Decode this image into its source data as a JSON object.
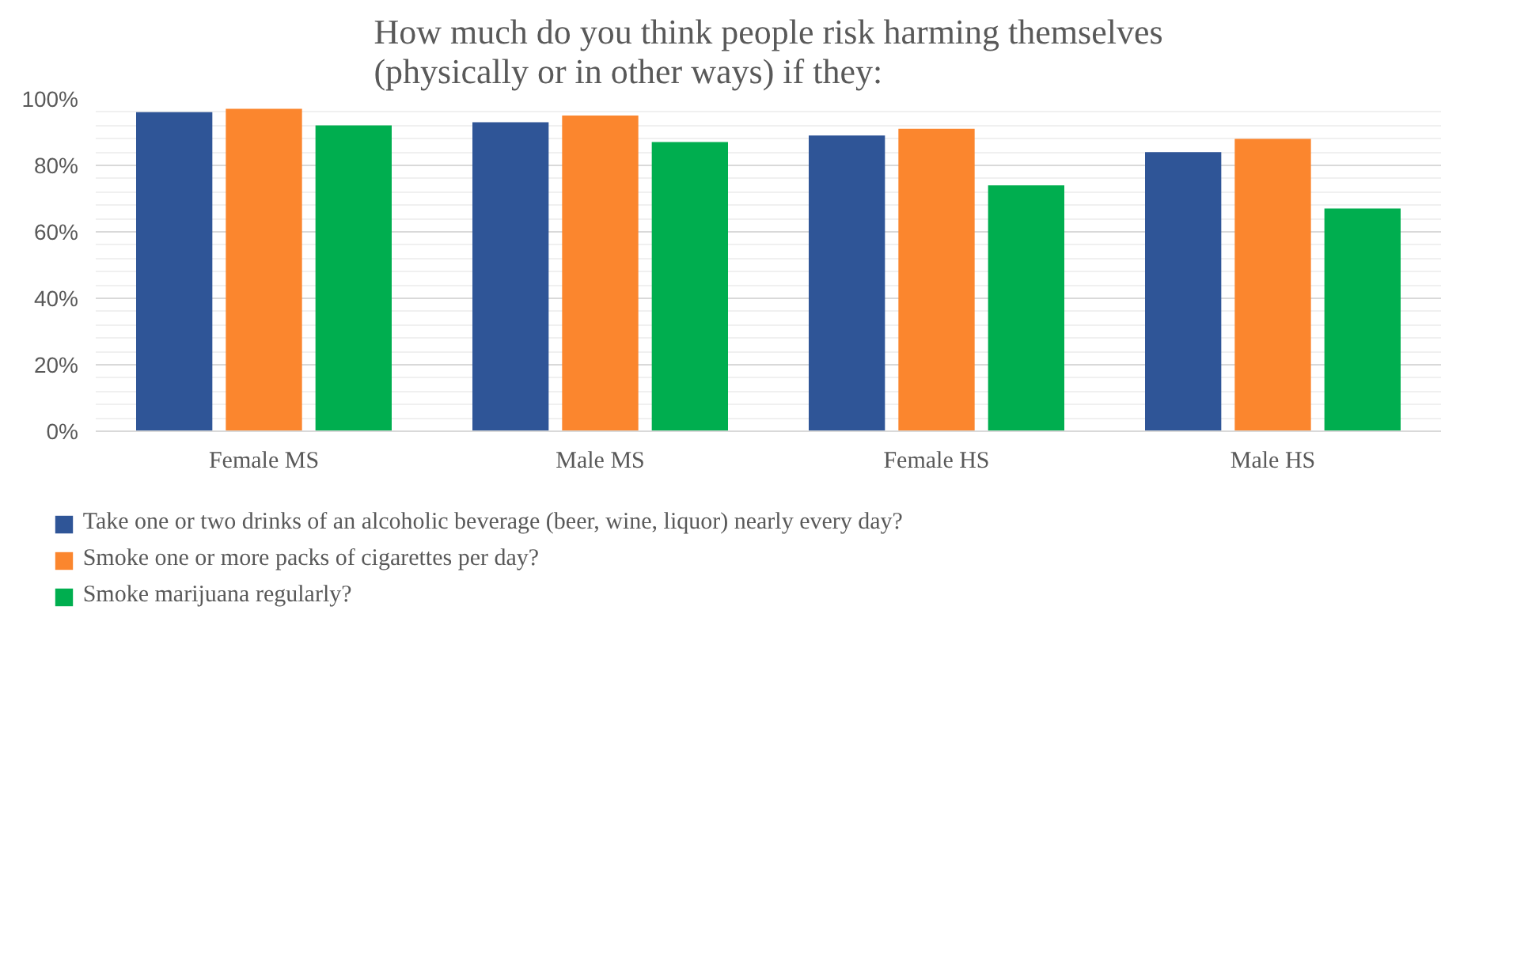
{
  "chart_data": {
    "type": "bar",
    "title": "How much do you think people risk harming themselves (physically or in other ways) if they:",
    "categories": [
      "Female MS",
      "Male MS",
      "Female HS",
      "Male HS"
    ],
    "series": [
      {
        "name": "Take one or two drinks of an alcoholic beverage (beer, wine, liquor) nearly every day?",
        "color": "#2f5597",
        "values": [
          96,
          93,
          89,
          84
        ]
      },
      {
        "name": "Smoke one or more packs of cigarettes per day?",
        "color": "#fb862e",
        "values": [
          97,
          95,
          91,
          88
        ]
      },
      {
        "name": "Smoke marijuana regularly?",
        "color": "#00ae4f",
        "values": [
          92,
          87,
          74,
          67
        ]
      }
    ],
    "ylim": [
      0,
      100
    ],
    "yticks": [
      {
        "value": 0,
        "label": "0%"
      },
      {
        "value": 20,
        "label": "20%"
      },
      {
        "value": 40,
        "label": "40%"
      },
      {
        "value": 60,
        "label": "60%"
      },
      {
        "value": 80,
        "label": "80%"
      },
      {
        "value": 100,
        "label": "100%"
      }
    ],
    "grid": "y",
    "legend": "bottom"
  }
}
